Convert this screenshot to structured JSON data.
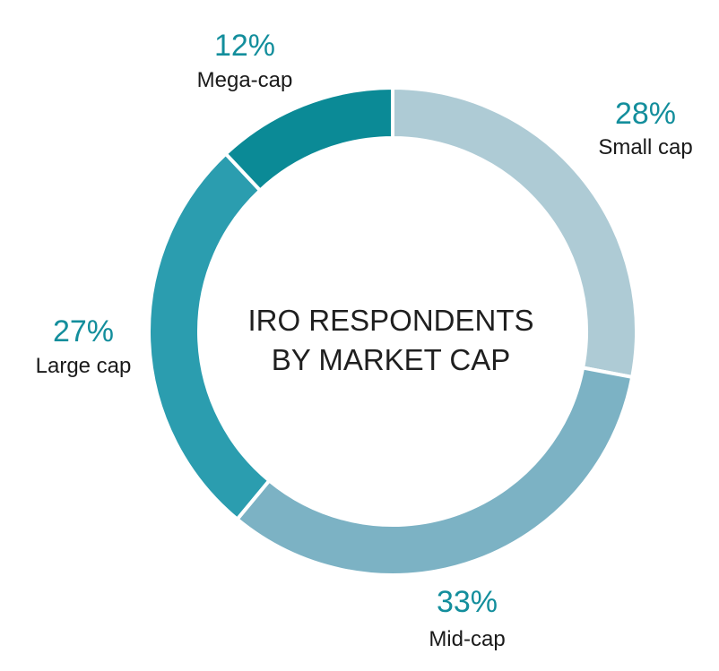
{
  "chart_data": {
    "type": "pie",
    "donut": true,
    "title_lines": [
      "IRO RESPONDENTS",
      "BY MARKET CAP"
    ],
    "slices": [
      {
        "label": "Small cap",
        "value": 28,
        "value_label": "28%",
        "color": "#aecbd5"
      },
      {
        "label": "Mid-cap",
        "value": 33,
        "value_label": "33%",
        "color": "#7cb2c4"
      },
      {
        "label": "Large cap",
        "value": 27,
        "value_label": "27%",
        "color": "#2b9daf"
      },
      {
        "label": "Mega-cap",
        "value": 12,
        "value_label": "12%",
        "color": "#0b8a96"
      }
    ],
    "value_label_color": "#138e9c",
    "start_angle": "top",
    "direction": "clockwise",
    "legend": "none"
  }
}
